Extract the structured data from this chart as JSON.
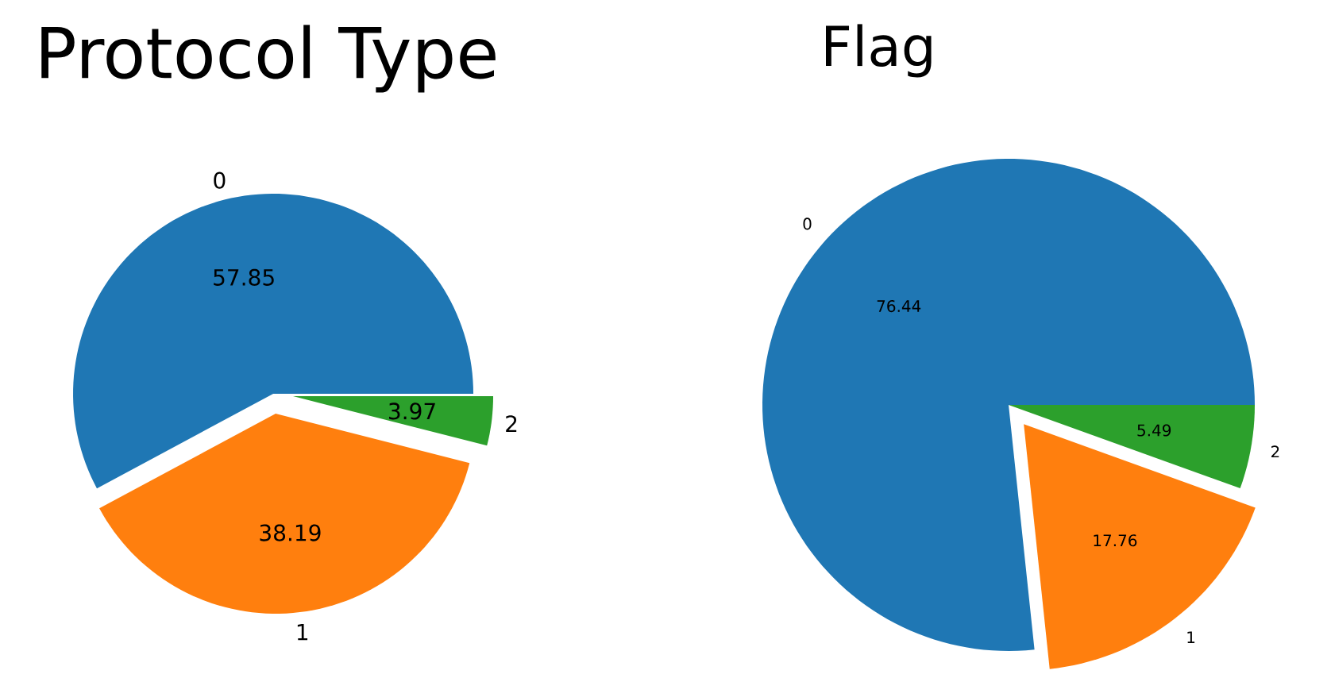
{
  "chart_data": [
    {
      "type": "pie",
      "title": "Protocol Type",
      "categories": [
        "0",
        "1",
        "2"
      ],
      "values": [
        57.85,
        38.19,
        3.97
      ],
      "value_labels": [
        "57.85",
        "38.19",
        "3.97"
      ],
      "colors": [
        "#1f77b4",
        "#ff7f0e",
        "#2ca02c"
      ]
    },
    {
      "type": "pie",
      "title": "Flag",
      "categories": [
        "0",
        "1",
        "2"
      ],
      "values": [
        76.44,
        17.76,
        5.49
      ],
      "value_labels": [
        "76.44",
        "17.76",
        "5.49"
      ],
      "colors": [
        "#1f77b4",
        "#ff7f0e",
        "#2ca02c"
      ]
    }
  ]
}
